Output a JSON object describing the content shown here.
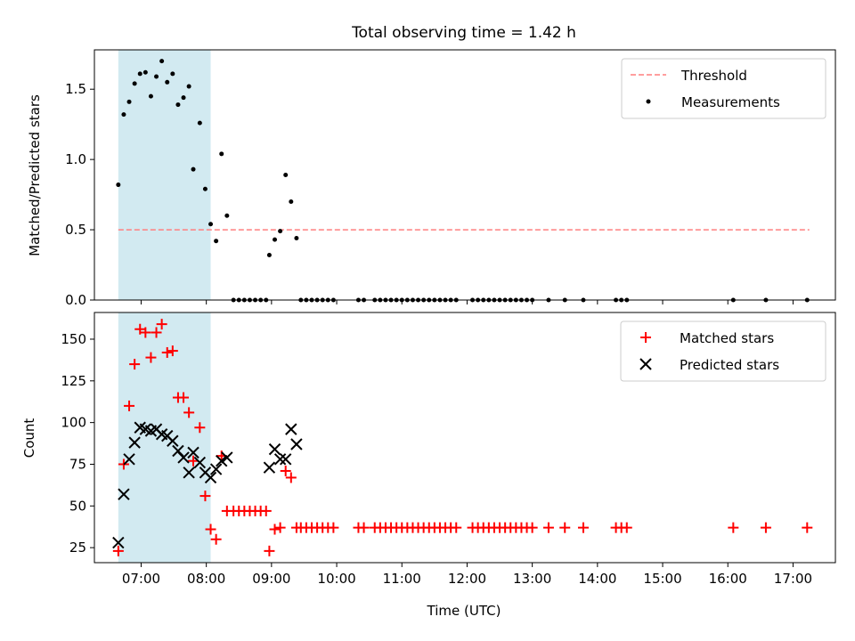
{
  "chart_data": [
    {
      "type": "scatter",
      "title": "Total observing time = 1.42 h",
      "xlabel": "",
      "ylabel": "Matched/Predicted stars",
      "xlim": [
        "06:17",
        "17:39"
      ],
      "ylim": [
        0,
        1.78
      ],
      "yticks": [
        0.0,
        0.5,
        1.0,
        1.5
      ],
      "ytick_labels": [
        "0.0",
        "0.5",
        "1.0",
        "1.5"
      ],
      "legend_position": "top-right",
      "highlight_span": {
        "x_start": "06:39",
        "x_end": "08:04",
        "color": "#add8e6"
      },
      "threshold": {
        "name": "Threshold",
        "y": 0.5,
        "x_start": "06:39",
        "x_end": "17:15",
        "color": "#ff7f7f",
        "style": "dashed"
      },
      "series": [
        {
          "name": "Measurements",
          "color": "#000000",
          "marker": "dot",
          "points": [
            [
              "06:39",
              0.82
            ],
            [
              "06:44",
              1.32
            ],
            [
              "06:49",
              1.41
            ],
            [
              "06:54",
              1.54
            ],
            [
              "06:59",
              1.61
            ],
            [
              "07:04",
              1.62
            ],
            [
              "07:09",
              1.45
            ],
            [
              "07:14",
              1.59
            ],
            [
              "07:19",
              1.7
            ],
            [
              "07:24",
              1.55
            ],
            [
              "07:29",
              1.61
            ],
            [
              "07:34",
              1.39
            ],
            [
              "07:39",
              1.44
            ],
            [
              "07:44",
              1.52
            ],
            [
              "07:48",
              0.93
            ],
            [
              "07:54",
              1.26
            ],
            [
              "07:59",
              0.79
            ],
            [
              "08:04",
              0.54
            ],
            [
              "08:09",
              0.42
            ],
            [
              "08:14",
              1.04
            ],
            [
              "08:19",
              0.6
            ],
            [
              "08:25",
              0
            ],
            [
              "08:30",
              0
            ],
            [
              "08:35",
              0
            ],
            [
              "08:40",
              0
            ],
            [
              "08:45",
              0
            ],
            [
              "08:50",
              0
            ],
            [
              "08:55",
              0
            ],
            [
              "08:58",
              0.32
            ],
            [
              "09:03",
              0.43
            ],
            [
              "09:08",
              0.49
            ],
            [
              "09:13",
              0.89
            ],
            [
              "09:18",
              0.7
            ],
            [
              "09:23",
              0.44
            ],
            [
              "09:27",
              0
            ],
            [
              "09:32",
              0
            ],
            [
              "09:37",
              0
            ],
            [
              "09:42",
              0
            ],
            [
              "09:47",
              0
            ],
            [
              "09:52",
              0
            ],
            [
              "09:57",
              0
            ],
            [
              "10:20",
              0
            ],
            [
              "10:25",
              0
            ],
            [
              "10:35",
              0
            ],
            [
              "10:40",
              0
            ],
            [
              "10:45",
              0
            ],
            [
              "10:50",
              0
            ],
            [
              "10:55",
              0
            ],
            [
              "11:00",
              0
            ],
            [
              "11:05",
              0
            ],
            [
              "11:10",
              0
            ],
            [
              "11:15",
              0
            ],
            [
              "11:20",
              0
            ],
            [
              "11:25",
              0
            ],
            [
              "11:30",
              0
            ],
            [
              "11:35",
              0
            ],
            [
              "11:40",
              0
            ],
            [
              "11:45",
              0
            ],
            [
              "11:50",
              0
            ],
            [
              "12:05",
              0
            ],
            [
              "12:10",
              0
            ],
            [
              "12:15",
              0
            ],
            [
              "12:20",
              0
            ],
            [
              "12:25",
              0
            ],
            [
              "12:30",
              0
            ],
            [
              "12:35",
              0
            ],
            [
              "12:40",
              0
            ],
            [
              "12:45",
              0
            ],
            [
              "12:50",
              0
            ],
            [
              "12:55",
              0
            ],
            [
              "13:00",
              0
            ],
            [
              "13:15",
              0
            ],
            [
              "13:30",
              0
            ],
            [
              "13:47",
              0
            ],
            [
              "14:17",
              0
            ],
            [
              "14:22",
              0
            ],
            [
              "14:27",
              0
            ],
            [
              "16:05",
              0
            ],
            [
              "16:35",
              0
            ],
            [
              "17:13",
              0
            ]
          ]
        }
      ]
    },
    {
      "type": "scatter",
      "title": "",
      "xlabel": "Time (UTC)",
      "ylabel": "Count",
      "xlim": [
        "06:17",
        "17:39"
      ],
      "ylim": [
        16,
        166
      ],
      "yticks": [
        25,
        50,
        75,
        100,
        125,
        150
      ],
      "ytick_labels": [
        "25",
        "50",
        "75",
        "100",
        "125",
        "150"
      ],
      "xticks": [
        "07:00",
        "08:00",
        "09:00",
        "10:00",
        "11:00",
        "12:00",
        "13:00",
        "14:00",
        "15:00",
        "16:00",
        "17:00"
      ],
      "legend_position": "top-right",
      "highlight_span": {
        "x_start": "06:39",
        "x_end": "08:04",
        "color": "#add8e6"
      },
      "series": [
        {
          "name": "Matched stars",
          "color": "#ff0000",
          "marker": "plus",
          "points": [
            [
              "06:39",
              23
            ],
            [
              "06:44",
              75
            ],
            [
              "06:49",
              110
            ],
            [
              "06:54",
              135
            ],
            [
              "06:59",
              156
            ],
            [
              "07:04",
              154
            ],
            [
              "07:09",
              139
            ],
            [
              "07:14",
              154
            ],
            [
              "07:19",
              159
            ],
            [
              "07:24",
              142
            ],
            [
              "07:29",
              143
            ],
            [
              "07:34",
              115
            ],
            [
              "07:39",
              115
            ],
            [
              "07:44",
              106
            ],
            [
              "07:48",
              77
            ],
            [
              "07:54",
              97
            ],
            [
              "07:59",
              56
            ],
            [
              "08:04",
              36
            ],
            [
              "08:09",
              30
            ],
            [
              "08:14",
              80
            ],
            [
              "08:19",
              47
            ],
            [
              "08:25",
              47
            ],
            [
              "08:30",
              47
            ],
            [
              "08:35",
              47
            ],
            [
              "08:40",
              47
            ],
            [
              "08:45",
              47
            ],
            [
              "08:50",
              47
            ],
            [
              "08:55",
              47
            ],
            [
              "08:58",
              23
            ],
            [
              "09:03",
              36
            ],
            [
              "09:08",
              37
            ],
            [
              "09:13",
              71
            ],
            [
              "09:18",
              67
            ],
            [
              "09:23",
              37
            ],
            [
              "09:27",
              37
            ],
            [
              "09:32",
              37
            ],
            [
              "09:37",
              37
            ],
            [
              "09:42",
              37
            ],
            [
              "09:47",
              37
            ],
            [
              "09:52",
              37
            ],
            [
              "09:57",
              37
            ],
            [
              "10:20",
              37
            ],
            [
              "10:25",
              37
            ],
            [
              "10:35",
              37
            ],
            [
              "10:40",
              37
            ],
            [
              "10:45",
              37
            ],
            [
              "10:50",
              37
            ],
            [
              "10:55",
              37
            ],
            [
              "11:00",
              37
            ],
            [
              "11:05",
              37
            ],
            [
              "11:10",
              37
            ],
            [
              "11:15",
              37
            ],
            [
              "11:20",
              37
            ],
            [
              "11:25",
              37
            ],
            [
              "11:30",
              37
            ],
            [
              "11:35",
              37
            ],
            [
              "11:40",
              37
            ],
            [
              "11:45",
              37
            ],
            [
              "11:50",
              37
            ],
            [
              "12:05",
              37
            ],
            [
              "12:10",
              37
            ],
            [
              "12:15",
              37
            ],
            [
              "12:20",
              37
            ],
            [
              "12:25",
              37
            ],
            [
              "12:30",
              37
            ],
            [
              "12:35",
              37
            ],
            [
              "12:40",
              37
            ],
            [
              "12:45",
              37
            ],
            [
              "12:50",
              37
            ],
            [
              "12:55",
              37
            ],
            [
              "13:00",
              37
            ],
            [
              "13:15",
              37
            ],
            [
              "13:30",
              37
            ],
            [
              "13:47",
              37
            ],
            [
              "14:17",
              37
            ],
            [
              "14:22",
              37
            ],
            [
              "14:27",
              37
            ],
            [
              "16:05",
              37
            ],
            [
              "16:35",
              37
            ],
            [
              "17:13",
              37
            ]
          ]
        },
        {
          "name": "Predicted stars",
          "color": "#000000",
          "marker": "x",
          "points": [
            [
              "06:39",
              28
            ],
            [
              "06:44",
              57
            ],
            [
              "06:49",
              78
            ],
            [
              "06:54",
              88
            ],
            [
              "06:59",
              97
            ],
            [
              "07:04",
              96
            ],
            [
              "07:09",
              95
            ],
            [
              "07:14",
              96
            ],
            [
              "07:19",
              93
            ],
            [
              "07:24",
              92
            ],
            [
              "07:29",
              89
            ],
            [
              "07:34",
              83
            ],
            [
              "07:39",
              79
            ],
            [
              "07:44",
              70
            ],
            [
              "07:48",
              82
            ],
            [
              "07:54",
              76
            ],
            [
              "07:59",
              70
            ],
            [
              "08:04",
              67
            ],
            [
              "08:09",
              72
            ],
            [
              "08:14",
              77
            ],
            [
              "08:19",
              79
            ],
            [
              "08:58",
              73
            ],
            [
              "09:03",
              84
            ],
            [
              "09:08",
              78
            ],
            [
              "09:13",
              78
            ],
            [
              "09:18",
              96
            ],
            [
              "09:23",
              87
            ]
          ]
        }
      ]
    }
  ]
}
